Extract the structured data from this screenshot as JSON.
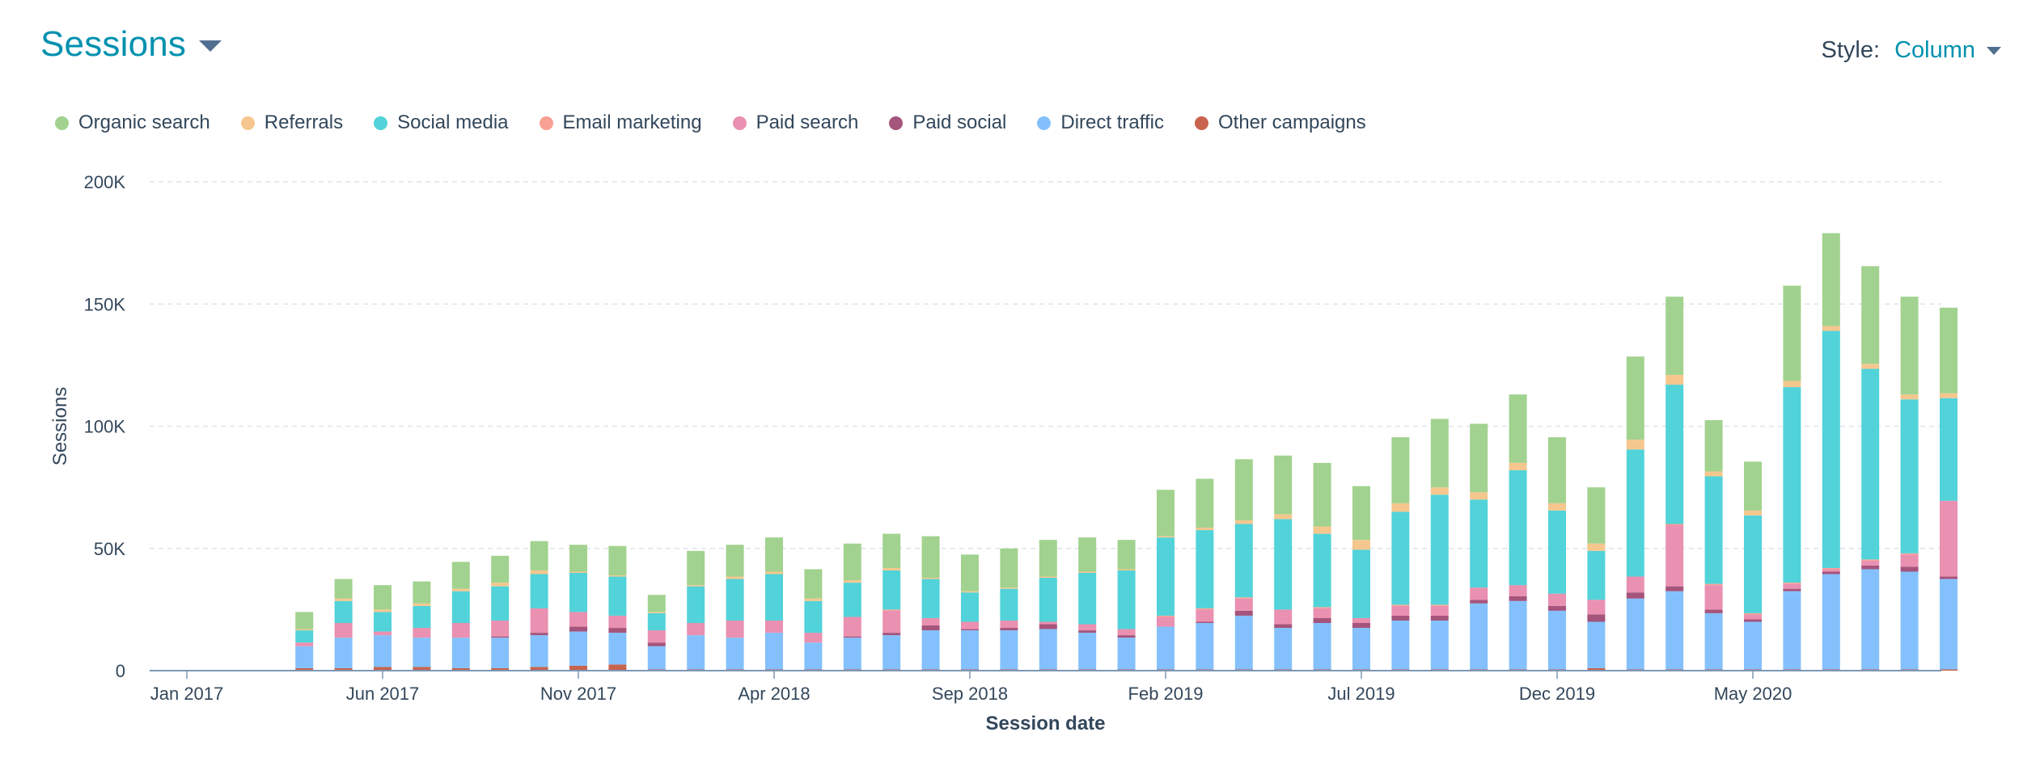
{
  "header": {
    "title": "Sessions",
    "style_label": "Style:",
    "style_value": "Column"
  },
  "chart_data": {
    "type": "bar",
    "stacked": true,
    "xlabel": "Session date",
    "ylabel": "Sessions",
    "ylim": [
      0,
      200000
    ],
    "yticks": [
      0,
      50000,
      100000,
      150000,
      200000
    ],
    "ytick_labels": [
      "0",
      "50K",
      "100K",
      "150K",
      "200K"
    ],
    "grid": true,
    "legend_position": "top-left",
    "categories": [
      "Jan 2017",
      "Feb 2017",
      "Mar 2017",
      "Apr 2017",
      "May 2017",
      "Jun 2017",
      "Jul 2017",
      "Aug 2017",
      "Sep 2017",
      "Oct 2017",
      "Nov 2017",
      "Dec 2017",
      "Jan 2018",
      "Feb 2018",
      "Mar 2018",
      "Apr 2018",
      "May 2018",
      "Jun 2018",
      "Jul 2018",
      "Aug 2018",
      "Sep 2018",
      "Oct 2018",
      "Nov 2018",
      "Dec 2018",
      "Jan 2019",
      "Feb 2019",
      "Mar 2019",
      "Apr 2019",
      "May 2019",
      "Jun 2019",
      "Jul 2019",
      "Aug 2019",
      "Sep 2019",
      "Oct 2019",
      "Nov 2019",
      "Dec 2019",
      "Jan 2020",
      "Feb 2020",
      "Mar 2020",
      "Apr 2020",
      "May 2020",
      "Jun 2020",
      "Jul 2020",
      "Aug 2020",
      "Sep 2020",
      "Oct 2020"
    ],
    "xtick_labels": [
      "Jan 2017",
      "Jun 2017",
      "Nov 2017",
      "Apr 2018",
      "Sep 2018",
      "Feb 2019",
      "Jul 2019",
      "Dec 2019",
      "May 2020"
    ],
    "series": [
      {
        "name": "Other campaigns",
        "color": "#c8634d",
        "values": [
          0,
          0,
          0,
          1000,
          1000,
          1500,
          1500,
          1000,
          1000,
          1500,
          2000,
          2500,
          500,
          500,
          500,
          500,
          500,
          500,
          500,
          500,
          500,
          500,
          500,
          500,
          500,
          500,
          500,
          500,
          500,
          500,
          500,
          500,
          500,
          500,
          500,
          500,
          1000,
          500,
          500,
          500,
          500,
          500,
          500,
          500,
          500,
          500
        ]
      },
      {
        "name": "Direct traffic",
        "color": "#84c1fc",
        "values": [
          0,
          0,
          0,
          9000,
          12500,
          13000,
          12000,
          12500,
          12500,
          13000,
          14000,
          13000,
          9500,
          14000,
          13000,
          15000,
          11000,
          13000,
          14000,
          16000,
          16000,
          16000,
          16500,
          15000,
          13000,
          17500,
          19000,
          22000,
          17000,
          19000,
          17000,
          20000,
          20000,
          27000,
          28000,
          24000,
          19000,
          29000,
          32000,
          23000,
          19500,
          32000,
          39000,
          41000,
          40000,
          37000
        ]
      },
      {
        "name": "Paid social",
        "color": "#a5547c",
        "values": [
          0,
          0,
          0,
          0,
          0,
          0,
          0,
          0,
          500,
          1000,
          2000,
          2000,
          1500,
          0,
          0,
          0,
          0,
          500,
          1000,
          2000,
          500,
          1000,
          2000,
          1000,
          1000,
          0,
          500,
          2000,
          1500,
          2000,
          2000,
          2000,
          2000,
          1500,
          2000,
          2000,
          3000,
          2500,
          2000,
          1500,
          1000,
          1000,
          1000,
          1500,
          2000,
          1000
        ]
      },
      {
        "name": "Paid search",
        "color": "#ea90b1",
        "values": [
          0,
          0,
          0,
          1500,
          6000,
          1500,
          4000,
          6000,
          6500,
          10000,
          6000,
          5000,
          5000,
          5000,
          7000,
          5000,
          4000,
          8000,
          9000,
          3000,
          3000,
          3000,
          1000,
          2500,
          2500,
          4000,
          5000,
          5000,
          6000,
          4000,
          2000,
          4000,
          4000,
          5000,
          4500,
          5000,
          6000,
          6500,
          25000,
          10000,
          2000,
          2000,
          1000,
          2000,
          5000,
          31000
        ]
      },
      {
        "name": "Email marketing",
        "color": "#f8a094",
        "values": [
          0,
          0,
          0,
          0,
          0,
          0,
          0,
          0,
          0,
          0,
          0,
          0,
          0,
          0,
          0,
          0,
          0,
          0,
          500,
          0,
          0,
          0,
          0,
          0,
          0,
          500,
          500,
          500,
          0,
          500,
          0,
          500,
          500,
          0,
          0,
          0,
          0,
          0,
          500,
          500,
          500,
          500,
          500,
          500,
          500,
          0
        ]
      },
      {
        "name": "Social media",
        "color": "#51d3d9",
        "values": [
          0,
          0,
          0,
          5000,
          9000,
          8000,
          9000,
          13000,
          14000,
          14000,
          16000,
          16000,
          7000,
          15000,
          17000,
          19000,
          13000,
          14000,
          16000,
          16000,
          12000,
          13000,
          18000,
          21000,
          24000,
          32000,
          32000,
          30000,
          37000,
          30000,
          28000,
          38000,
          45000,
          36000,
          47000,
          34000,
          20000,
          52000,
          57000,
          44000,
          40000,
          80000,
          97000,
          78000,
          63000,
          42000
        ]
      },
      {
        "name": "Referrals",
        "color": "#f5c78e",
        "values": [
          0,
          0,
          0,
          500,
          1000,
          1000,
          1000,
          1000,
          1500,
          1500,
          500,
          500,
          500,
          500,
          1000,
          1000,
          1000,
          1000,
          1000,
          500,
          500,
          500,
          500,
          500,
          500,
          500,
          1000,
          1500,
          2000,
          3000,
          4000,
          3500,
          3000,
          3000,
          3000,
          3000,
          3000,
          4000,
          4000,
          2000,
          2000,
          2500,
          2000,
          2000,
          2000,
          2000
        ]
      },
      {
        "name": "Organic search",
        "color": "#a2d28f",
        "values": [
          0,
          0,
          0,
          7000,
          8000,
          10000,
          9000,
          11000,
          11000,
          12000,
          11000,
          12000,
          7000,
          14000,
          13000,
          14000,
          12000,
          15000,
          14000,
          17000,
          15000,
          16000,
          15000,
          14000,
          12000,
          19000,
          20000,
          25000,
          24000,
          26000,
          22000,
          27000,
          28000,
          28000,
          28000,
          27000,
          23000,
          34000,
          32000,
          21000,
          20000,
          39000,
          38000,
          40000,
          40000,
          35000
        ]
      }
    ]
  },
  "legend": [
    {
      "label": "Organic search",
      "color": "#a2d28f"
    },
    {
      "label": "Referrals",
      "color": "#f5c78e"
    },
    {
      "label": "Social media",
      "color": "#51d3d9"
    },
    {
      "label": "Email marketing",
      "color": "#f8a094"
    },
    {
      "label": "Paid search",
      "color": "#ea90b1"
    },
    {
      "label": "Paid social",
      "color": "#a5547c"
    },
    {
      "label": "Direct traffic",
      "color": "#84c1fc"
    },
    {
      "label": "Other campaigns",
      "color": "#c8634d"
    }
  ]
}
